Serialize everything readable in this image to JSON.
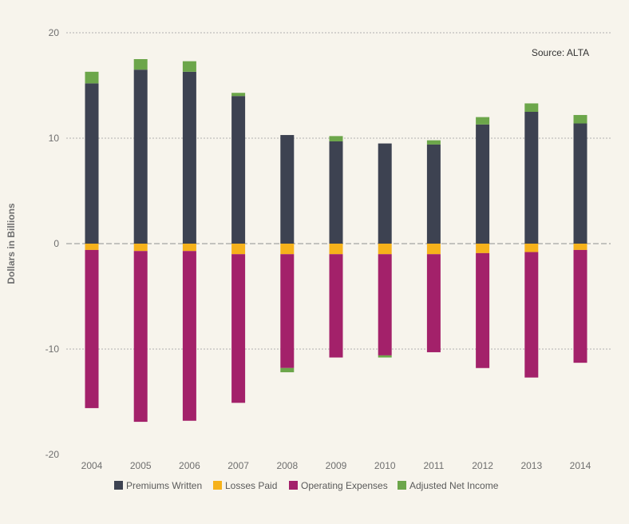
{
  "chart_data": {
    "type": "bar",
    "stacked": true,
    "title": "",
    "xlabel": "",
    "ylabel": "Dollars in Billions",
    "ylim": [
      -20,
      20
    ],
    "yticks": [
      20,
      10,
      0,
      -10,
      -20
    ],
    "grid": true,
    "legend_position": "bottom",
    "annotation": "Source: ALTA",
    "categories": [
      "2004",
      "2005",
      "2006",
      "2007",
      "2008",
      "2009",
      "2010",
      "2011",
      "2012",
      "2013",
      "2014"
    ],
    "series": [
      {
        "name": "Premiums Written",
        "color": "#3d4251",
        "values": [
          15.2,
          16.5,
          16.3,
          14.0,
          10.3,
          9.7,
          9.5,
          9.4,
          11.3,
          12.5,
          11.4
        ]
      },
      {
        "name": "Losses Paid",
        "color": "#f6b21b",
        "values": [
          -0.6,
          -0.7,
          -0.7,
          -1.0,
          -1.0,
          -1.0,
          -1.0,
          -1.0,
          -0.9,
          -0.8,
          -0.6
        ]
      },
      {
        "name": "Operating Expenses",
        "color": "#a3216a",
        "values": [
          -15.0,
          -16.2,
          -16.1,
          -14.1,
          -10.8,
          -9.8,
          -9.6,
          -9.3,
          -10.9,
          -11.9,
          -10.7
        ]
      },
      {
        "name": "Adjusted Net Income",
        "color": "#6ca64a",
        "values": [
          1.1,
          1.0,
          1.0,
          0.3,
          -0.4,
          0.5,
          -0.2,
          0.4,
          0.7,
          0.8,
          0.8
        ]
      }
    ]
  }
}
